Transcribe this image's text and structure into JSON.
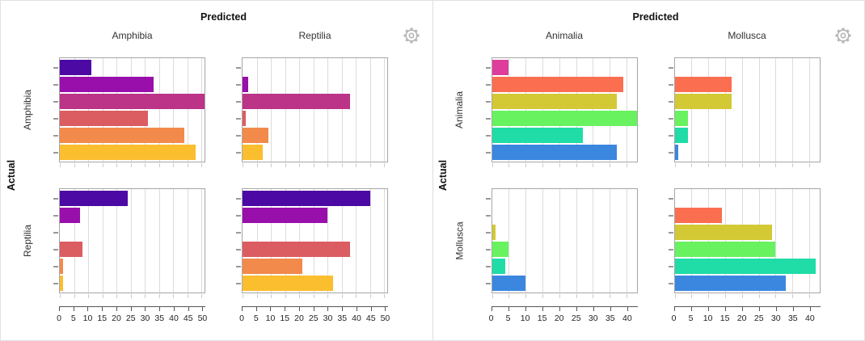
{
  "page": {
    "background": "#ffffff",
    "divider_color": "#dddddd",
    "grid_color": "#dcdcdc",
    "facet_border_color": "#a6a6a6"
  },
  "controls": {
    "settings_icon": "gear"
  },
  "chart_data": [
    {
      "type": "bar",
      "orientation": "horizontal",
      "layout": "2x2 facet grid (confusion-matrix style), grid on, no legend",
      "title_top": "Predicted",
      "title_left": "Actual",
      "predicted_categories": [
        "Amphibia",
        "Reptilia"
      ],
      "actual_categories": [
        "Amphibia",
        "Reptilia"
      ],
      "x_ticks": [
        0,
        5,
        10,
        15,
        20,
        25,
        30,
        35,
        40,
        45,
        50
      ],
      "xlim": [
        0,
        51
      ],
      "bar_colors": [
        "#4C09A4",
        "#990FAC",
        "#BB3488",
        "#DB5C61",
        "#F28A4B",
        "#FBBE2F"
      ],
      "facets": [
        {
          "actual": "Amphibia",
          "predicted": "Amphibia",
          "values": [
            11,
            33,
            51,
            31,
            44,
            48
          ]
        },
        {
          "actual": "Amphibia",
          "predicted": "Reptilia",
          "values": [
            0,
            2,
            38,
            1,
            9,
            7
          ]
        },
        {
          "actual": "Reptilia",
          "predicted": "Amphibia",
          "values": [
            24,
            7,
            0,
            8,
            1,
            1
          ]
        },
        {
          "actual": "Reptilia",
          "predicted": "Reptilia",
          "values": [
            45,
            30,
            0,
            38,
            21,
            32
          ]
        }
      ]
    },
    {
      "type": "bar",
      "orientation": "horizontal",
      "layout": "2x2 facet grid (confusion-matrix style), grid on, no legend",
      "title_top": "Predicted",
      "title_left": "Actual",
      "predicted_categories": [
        "Animalia",
        "Mollusca"
      ],
      "actual_categories": [
        "Animalia",
        "Mollusca"
      ],
      "x_ticks": [
        0,
        5,
        10,
        15,
        20,
        25,
        30,
        35,
        40
      ],
      "xlim": [
        0,
        43
      ],
      "bar_colors": [
        "#DE3D9B",
        "#FB6E50",
        "#D3C934",
        "#68F25F",
        "#20DCA6",
        "#3B87E0"
      ],
      "facets": [
        {
          "actual": "Animalia",
          "predicted": "Animalia",
          "values": [
            5,
            39,
            37,
            43,
            27,
            37
          ]
        },
        {
          "actual": "Animalia",
          "predicted": "Mollusca",
          "values": [
            0,
            17,
            17,
            4,
            4,
            1
          ]
        },
        {
          "actual": "Mollusca",
          "predicted": "Animalia",
          "values": [
            0,
            0,
            1,
            5,
            4,
            10
          ]
        },
        {
          "actual": "Mollusca",
          "predicted": "Mollusca",
          "values": [
            0,
            14,
            29,
            30,
            42,
            33
          ]
        }
      ]
    }
  ]
}
